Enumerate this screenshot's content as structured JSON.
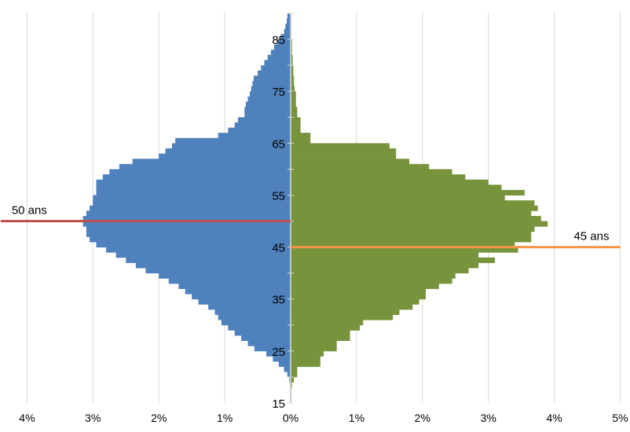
{
  "chart_data": {
    "type": "bar",
    "orientation": "horizontal",
    "subtype": "population-pyramid",
    "x_axis": {
      "min": -4,
      "max": 5,
      "unit": "%",
      "tick_labels": [
        "4%",
        "3%",
        "2%",
        "1%",
        "0%",
        "1%",
        "2%",
        "3%",
        "4%",
        "5%"
      ],
      "grid": true
    },
    "y_axis": {
      "min": 15,
      "max": 90,
      "tick_labels": [
        "15",
        "25",
        "35",
        "45",
        "55",
        "65",
        "75",
        "85"
      ]
    },
    "ages": [
      15,
      16,
      17,
      18,
      19,
      20,
      21,
      22,
      23,
      24,
      25,
      26,
      27,
      28,
      29,
      30,
      31,
      32,
      33,
      34,
      35,
      36,
      37,
      38,
      39,
      40,
      41,
      42,
      43,
      44,
      45,
      46,
      47,
      48,
      49,
      50,
      51,
      52,
      53,
      54,
      55,
      56,
      57,
      58,
      59,
      60,
      61,
      62,
      63,
      64,
      65,
      66,
      67,
      68,
      69,
      70,
      71,
      72,
      73,
      74,
      75,
      76,
      77,
      78,
      79,
      80,
      81,
      82,
      83,
      84,
      85,
      86,
      87,
      88,
      89
    ],
    "series": [
      {
        "side": "left",
        "color": "#4f81bd",
        "values": [
          0.01,
          0.01,
          0.01,
          0.01,
          0.02,
          0.05,
          0.1,
          0.18,
          0.27,
          0.37,
          0.55,
          0.65,
          0.75,
          0.85,
          0.95,
          1.05,
          1.1,
          1.15,
          1.25,
          1.4,
          1.5,
          1.6,
          1.7,
          1.85,
          2.0,
          2.2,
          2.35,
          2.5,
          2.65,
          2.8,
          2.95,
          3.05,
          3.1,
          3.1,
          3.15,
          3.15,
          3.1,
          3.05,
          3.0,
          3.0,
          2.95,
          2.95,
          2.95,
          2.85,
          2.75,
          2.6,
          2.4,
          2.0,
          1.9,
          1.8,
          1.75,
          1.1,
          0.95,
          0.85,
          0.8,
          0.7,
          0.7,
          0.68,
          0.65,
          0.62,
          0.6,
          0.58,
          0.56,
          0.5,
          0.45,
          0.4,
          0.35,
          0.3,
          0.25,
          0.2,
          0.15,
          0.1,
          0.08,
          0.06,
          0.05
        ]
      },
      {
        "side": "right",
        "color": "#77933c",
        "values": [
          0.01,
          0.01,
          0.01,
          0.02,
          0.05,
          0.1,
          0.1,
          0.45,
          0.45,
          0.5,
          0.7,
          0.7,
          0.9,
          0.9,
          1.05,
          1.1,
          1.55,
          1.65,
          1.85,
          1.95,
          2.05,
          2.05,
          2.25,
          2.45,
          2.5,
          2.7,
          2.85,
          3.1,
          2.85,
          3.45,
          3.4,
          3.65,
          3.65,
          3.7,
          3.9,
          3.8,
          3.65,
          3.75,
          3.7,
          3.25,
          3.55,
          3.2,
          3.0,
          2.65,
          2.45,
          2.1,
          1.8,
          1.6,
          1.6,
          1.5,
          0.3,
          0.3,
          0.15,
          0.15,
          0.15,
          0.1,
          0.1,
          0.08,
          0.08,
          0.08,
          0.06,
          0.05,
          0.05,
          0.04,
          0.04,
          0.03,
          0.03,
          0.02,
          0.02,
          0.02,
          0.01,
          0.01,
          0.01,
          0.01,
          0.01
        ]
      }
    ],
    "annotations": [
      {
        "label": "50 ans",
        "age": 50,
        "x_from": -4.4,
        "x_to": 0,
        "color": "#c0504d"
      },
      {
        "label": "45 ans",
        "age": 45,
        "x_from": 0,
        "x_to": 5,
        "color": "#f79646"
      }
    ]
  }
}
